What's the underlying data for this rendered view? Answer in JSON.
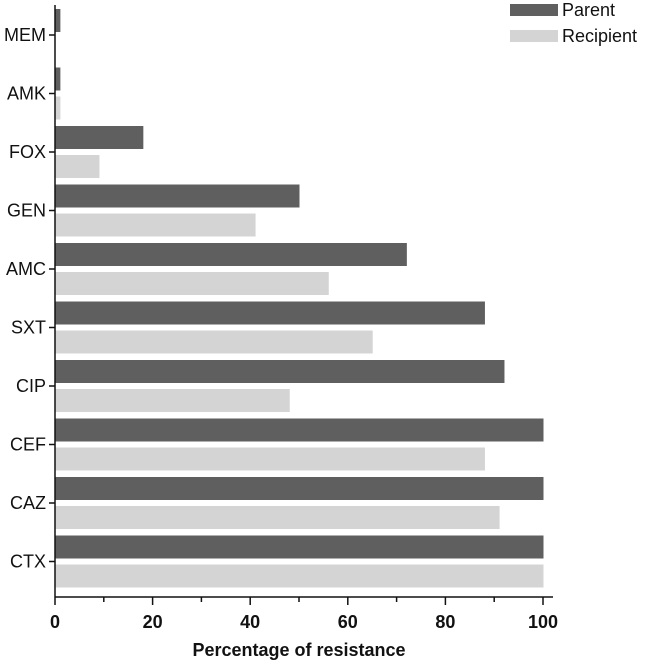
{
  "chart_data": {
    "type": "bar",
    "orientation": "horizontal",
    "categories": [
      "MEM",
      "AMK",
      "FOX",
      "GEN",
      "AMC",
      "SXT",
      "CIP",
      "CEF",
      "CAZ",
      "CTX"
    ],
    "series": [
      {
        "name": "Parent",
        "color": "#5f5f5f",
        "values": [
          1,
          1,
          18,
          50,
          72,
          88,
          92,
          100,
          100,
          100
        ]
      },
      {
        "name": "Recipient",
        "color": "#d4d4d4",
        "values": [
          0,
          1,
          9,
          41,
          56,
          65,
          48,
          88,
          91,
          100
        ]
      }
    ],
    "xlabel": "Percentage of resistance",
    "ylabel": "",
    "xlim": [
      0,
      100
    ],
    "xticks": [
      0,
      20,
      40,
      60,
      80,
      100
    ],
    "grid": false,
    "legend_position": "top-right"
  }
}
